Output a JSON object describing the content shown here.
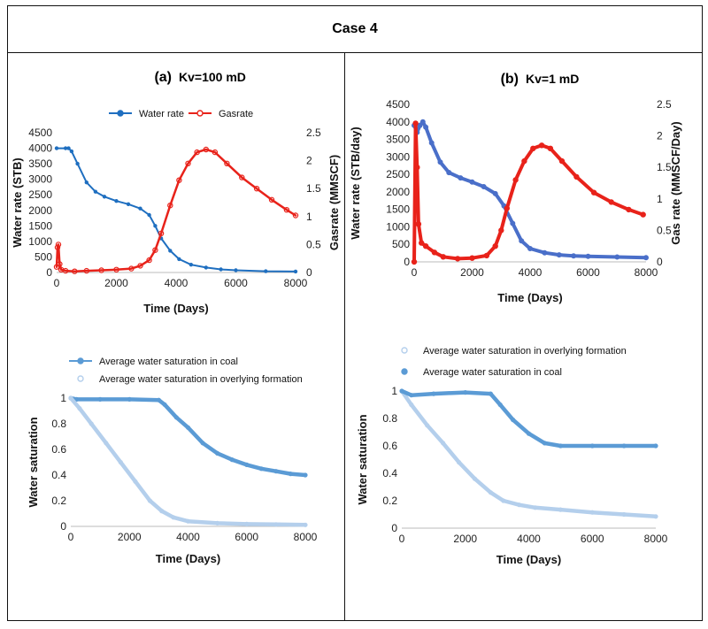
{
  "page_title": "Case 4",
  "colors": {
    "water": "#1f6fc0",
    "water_b": "#4a6fc9",
    "gas": "#e8221a",
    "coal": "#5b9bd5",
    "overlying": "#b4cfec"
  },
  "chart_data": [
    {
      "id": "a_rates",
      "type": "line",
      "panel_label": "(a)",
      "panel_condition": "Kv=100 mD",
      "xlabel": "Time (Days)",
      "ylabel": "Water rate (STB)",
      "y2label": "Gasrate (MMSCF)",
      "xlim": [
        0,
        8000
      ],
      "xticks": [
        "0",
        "2000",
        "4000",
        "6000",
        "8000"
      ],
      "ylim": [
        0,
        4500
      ],
      "yticks": [
        "0",
        "500",
        "1000",
        "1500",
        "2000",
        "2500",
        "3000",
        "3500",
        "4000",
        "4500"
      ],
      "y2lim": [
        0,
        2.5
      ],
      "y2ticks": [
        "0",
        "0.5",
        "1",
        "1.5",
        "2",
        "2.5"
      ],
      "series": [
        {
          "name": "Water rate",
          "axis": "left",
          "points": [
            [
              0,
              4000
            ],
            [
              300,
              4000
            ],
            [
              400,
              4000
            ],
            [
              500,
              3900
            ],
            [
              700,
              3500
            ],
            [
              1000,
              2900
            ],
            [
              1300,
              2600
            ],
            [
              1600,
              2440
            ],
            [
              2000,
              2300
            ],
            [
              2400,
              2200
            ],
            [
              2800,
              2060
            ],
            [
              3100,
              1850
            ],
            [
              3300,
              1500
            ],
            [
              3500,
              1100
            ],
            [
              3800,
              700
            ],
            [
              4100,
              430
            ],
            [
              4500,
              250
            ],
            [
              5000,
              160
            ],
            [
              5500,
              100
            ],
            [
              6000,
              70
            ],
            [
              7000,
              40
            ],
            [
              8000,
              30
            ]
          ]
        },
        {
          "name": "Gasrate",
          "axis": "right",
          "points": [
            [
              0,
              0.1
            ],
            [
              30,
              0.45
            ],
            [
              60,
              0.5
            ],
            [
              100,
              0.15
            ],
            [
              150,
              0.05
            ],
            [
              300,
              0.03
            ],
            [
              600,
              0.02
            ],
            [
              1000,
              0.03
            ],
            [
              1500,
              0.04
            ],
            [
              2000,
              0.05
            ],
            [
              2500,
              0.07
            ],
            [
              2800,
              0.12
            ],
            [
              3100,
              0.22
            ],
            [
              3300,
              0.4
            ],
            [
              3500,
              0.7
            ],
            [
              3800,
              1.2
            ],
            [
              4100,
              1.65
            ],
            [
              4400,
              1.95
            ],
            [
              4700,
              2.15
            ],
            [
              5000,
              2.2
            ],
            [
              5300,
              2.15
            ],
            [
              5700,
              1.95
            ],
            [
              6200,
              1.7
            ],
            [
              6700,
              1.5
            ],
            [
              7200,
              1.3
            ],
            [
              7700,
              1.12
            ],
            [
              8000,
              1.02
            ]
          ]
        }
      ]
    },
    {
      "id": "b_rates",
      "type": "line",
      "panel_label": "(b)",
      "panel_condition": "Kv=1 mD",
      "xlabel": "Time (Days)",
      "ylabel": "Water rate (STB/day)",
      "y2label": "Gas rate (MMSCF/Day)",
      "xlim": [
        0,
        8000
      ],
      "xticks": [
        "0",
        "2000",
        "4000",
        "6000",
        "8000"
      ],
      "ylim": [
        0,
        4500
      ],
      "yticks": [
        "0",
        "500",
        "1000",
        "1500",
        "2000",
        "2500",
        "3000",
        "3500",
        "4000",
        "4500"
      ],
      "y2lim": [
        0,
        2.5
      ],
      "y2ticks": [
        "0",
        "0.5",
        "1",
        "1.5",
        "2",
        "2.5"
      ],
      "series": [
        {
          "name": "Water rate",
          "axis": "left",
          "points": [
            [
              0,
              3900
            ],
            [
              100,
              3700
            ],
            [
              200,
              3900
            ],
            [
              300,
              4000
            ],
            [
              400,
              3850
            ],
            [
              600,
              3400
            ],
            [
              900,
              2850
            ],
            [
              1200,
              2550
            ],
            [
              1600,
              2400
            ],
            [
              2000,
              2280
            ],
            [
              2400,
              2150
            ],
            [
              2800,
              1950
            ],
            [
              3100,
              1600
            ],
            [
              3400,
              1100
            ],
            [
              3700,
              600
            ],
            [
              4000,
              380
            ],
            [
              4500,
              260
            ],
            [
              5000,
              200
            ],
            [
              5500,
              170
            ],
            [
              6000,
              160
            ],
            [
              7000,
              140
            ],
            [
              8000,
              120
            ]
          ]
        },
        {
          "name": "Gasrate",
          "axis": "right",
          "points": [
            [
              0,
              0
            ],
            [
              50,
              2.2
            ],
            [
              100,
              1.5
            ],
            [
              150,
              0.6
            ],
            [
              250,
              0.3
            ],
            [
              400,
              0.25
            ],
            [
              700,
              0.15
            ],
            [
              1000,
              0.08
            ],
            [
              1500,
              0.05
            ],
            [
              2000,
              0.06
            ],
            [
              2500,
              0.1
            ],
            [
              2800,
              0.25
            ],
            [
              3000,
              0.5
            ],
            [
              3200,
              0.85
            ],
            [
              3500,
              1.3
            ],
            [
              3800,
              1.6
            ],
            [
              4100,
              1.8
            ],
            [
              4400,
              1.85
            ],
            [
              4700,
              1.8
            ],
            [
              5100,
              1.6
            ],
            [
              5600,
              1.35
            ],
            [
              6200,
              1.1
            ],
            [
              6800,
              0.95
            ],
            [
              7400,
              0.83
            ],
            [
              7900,
              0.75
            ]
          ]
        }
      ]
    },
    {
      "id": "a_sat",
      "type": "line",
      "xlabel": "Time (Days)",
      "ylabel": "Water saturation",
      "xlim": [
        0,
        8000
      ],
      "xticks": [
        "0",
        "2000",
        "4000",
        "6000",
        "8000"
      ],
      "ylim": [
        0,
        1
      ],
      "yticks": [
        "0",
        "0.2",
        "0.4",
        "0.6",
        "0.8",
        "1"
      ],
      "series": [
        {
          "name": "Average water saturation in coal",
          "points": [
            [
              0,
              1.0
            ],
            [
              200,
              0.99
            ],
            [
              1000,
              0.99
            ],
            [
              2000,
              0.99
            ],
            [
              3000,
              0.985
            ],
            [
              3200,
              0.95
            ],
            [
              3600,
              0.85
            ],
            [
              4000,
              0.77
            ],
            [
              4500,
              0.65
            ],
            [
              5000,
              0.57
            ],
            [
              5500,
              0.52
            ],
            [
              6000,
              0.48
            ],
            [
              6500,
              0.45
            ],
            [
              7000,
              0.43
            ],
            [
              7500,
              0.41
            ],
            [
              8000,
              0.4
            ]
          ]
        },
        {
          "name": "Average water saturation in overlying formation",
          "points": [
            [
              0,
              1.0
            ],
            [
              300,
              0.92
            ],
            [
              700,
              0.8
            ],
            [
              1200,
              0.65
            ],
            [
              1700,
              0.5
            ],
            [
              2200,
              0.35
            ],
            [
              2700,
              0.2
            ],
            [
              3100,
              0.12
            ],
            [
              3500,
              0.07
            ],
            [
              4000,
              0.04
            ],
            [
              5000,
              0.025
            ],
            [
              6000,
              0.018
            ],
            [
              7000,
              0.015
            ],
            [
              8000,
              0.012
            ]
          ]
        }
      ]
    },
    {
      "id": "b_sat",
      "type": "line",
      "xlabel": "Time (Days)",
      "ylabel": "Water saturation",
      "xlim": [
        0,
        8000
      ],
      "xticks": [
        "0",
        "2000",
        "4000",
        "6000",
        "8000"
      ],
      "ylim": [
        0,
        1
      ],
      "yticks": [
        "0",
        "0.2",
        "0.4",
        "0.6",
        "0.8",
        "1"
      ],
      "series": [
        {
          "name": "Average water saturation in overlying formation",
          "points": [
            [
              0,
              1.0
            ],
            [
              300,
              0.9
            ],
            [
              800,
              0.75
            ],
            [
              1300,
              0.62
            ],
            [
              1800,
              0.48
            ],
            [
              2300,
              0.36
            ],
            [
              2800,
              0.26
            ],
            [
              3200,
              0.2
            ],
            [
              3700,
              0.17
            ],
            [
              4200,
              0.15
            ],
            [
              5000,
              0.135
            ],
            [
              6000,
              0.115
            ],
            [
              7000,
              0.1
            ],
            [
              8000,
              0.085
            ]
          ]
        },
        {
          "name": "Average water saturation in coal",
          "points": [
            [
              0,
              1.0
            ],
            [
              300,
              0.97
            ],
            [
              1000,
              0.98
            ],
            [
              2000,
              0.99
            ],
            [
              2800,
              0.98
            ],
            [
              3100,
              0.9
            ],
            [
              3500,
              0.79
            ],
            [
              4000,
              0.69
            ],
            [
              4500,
              0.62
            ],
            [
              5000,
              0.6
            ],
            [
              6000,
              0.6
            ],
            [
              7000,
              0.6
            ],
            [
              8000,
              0.6
            ]
          ]
        }
      ]
    }
  ]
}
